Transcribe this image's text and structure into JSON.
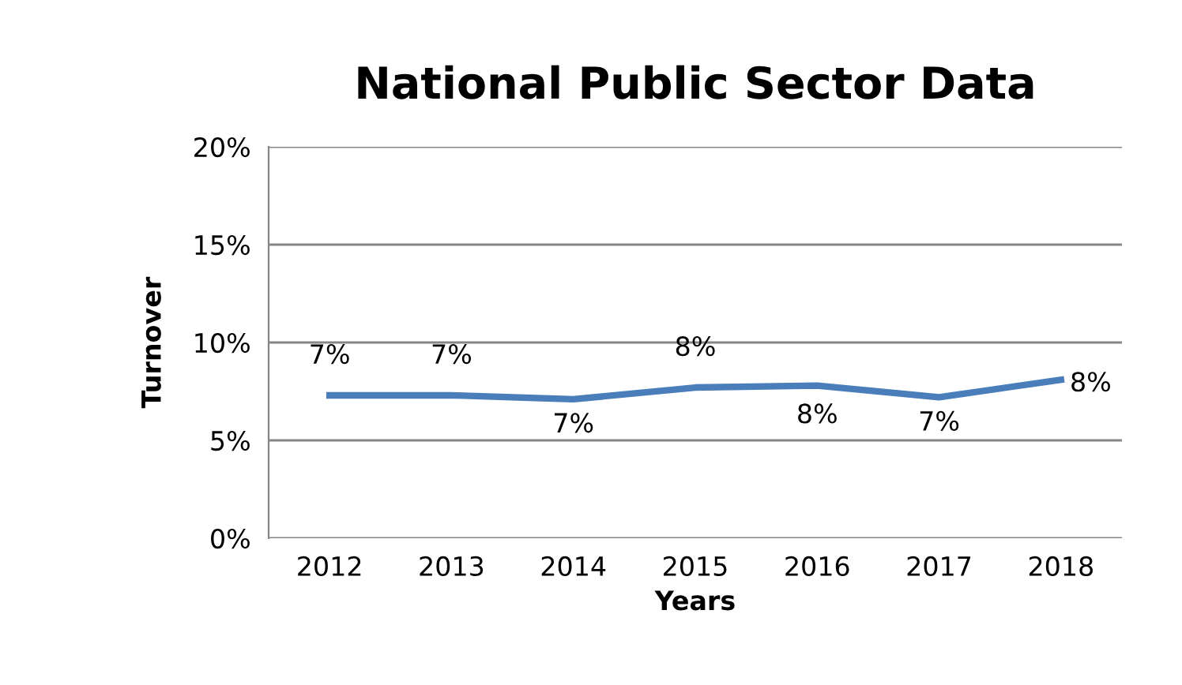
{
  "chart_data": {
    "type": "line",
    "title": "National Public Sector Data",
    "xlabel": "Years",
    "ylabel": "Turnover",
    "categories": [
      "2012",
      "2013",
      "2014",
      "2015",
      "2016",
      "2017",
      "2018"
    ],
    "series": [
      {
        "color": "#4a7ebb",
        "values": [
          7.3,
          7.3,
          7.1,
          7.7,
          7.8,
          7.2,
          8.1
        ],
        "value_labels": [
          "7%",
          "7%",
          "7%",
          "8%",
          "8%",
          "7%",
          "8%"
        ]
      }
    ],
    "ylim": [
      0,
      20
    ],
    "yticks": [
      {
        "value": 0,
        "label": "0%"
      },
      {
        "value": 5,
        "label": "5%"
      },
      {
        "value": 10,
        "label": "10%"
      },
      {
        "value": 15,
        "label": "15%"
      },
      {
        "value": 20,
        "label": "20%"
      }
    ],
    "grid": "y",
    "legend": false,
    "marker": "none",
    "line_style": "solid"
  }
}
